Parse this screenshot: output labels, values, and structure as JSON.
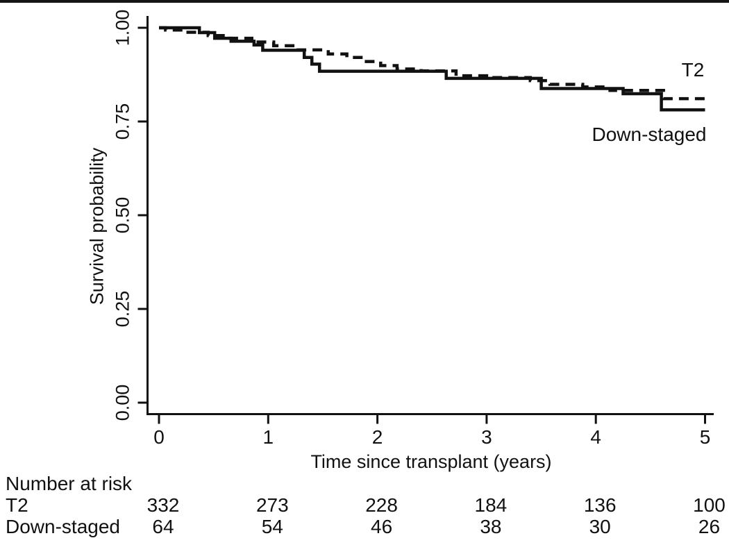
{
  "figure": {
    "y_axis": {
      "label": "Survival probability",
      "ticks": [
        "0.00",
        "0.25",
        "0.50",
        "0.75",
        "1.00"
      ]
    },
    "x_axis": {
      "label": "Time since transplant (years)",
      "ticks": [
        "0",
        "1",
        "2",
        "3",
        "4",
        "5"
      ]
    },
    "curve_labels": [
      {
        "text": "T2"
      },
      {
        "text": "Down-staged"
      }
    ],
    "risk_table": {
      "heading": "Number at risk",
      "rows": [
        {
          "label": "T2",
          "values": [
            "332",
            "273",
            "228",
            "184",
            "136",
            "100"
          ]
        },
        {
          "label": "Down-staged",
          "values": [
            "64",
            "54",
            "46",
            "38",
            "30",
            "26"
          ]
        }
      ]
    }
  },
  "colors": {
    "line": "#111111",
    "axis": "#222222",
    "text": "#111111",
    "background": "#ffffff"
  },
  "chart_data": {
    "type": "line",
    "variant": "kaplan_meier_step",
    "title": "",
    "xlabel": "Time since transplant (years)",
    "ylabel": "Survival probability",
    "xlim": [
      0,
      5
    ],
    "ylim": [
      0,
      1
    ],
    "xticks": [
      0,
      1,
      2,
      3,
      4,
      5
    ],
    "yticks": [
      0.0,
      0.25,
      0.5,
      0.75,
      1.0
    ],
    "grid": false,
    "legend_position": "curve-end-labels",
    "series": [
      {
        "name": "T2",
        "line_style": "dashed",
        "points": [
          [
            0.0,
            1.0
          ],
          [
            0.06,
            0.994
          ],
          [
            0.2,
            0.988
          ],
          [
            0.45,
            0.979
          ],
          [
            0.62,
            0.972
          ],
          [
            0.85,
            0.962
          ],
          [
            1.05,
            0.952
          ],
          [
            1.25,
            0.941
          ],
          [
            1.55,
            0.93
          ],
          [
            1.72,
            0.921
          ],
          [
            1.88,
            0.91
          ],
          [
            2.03,
            0.899
          ],
          [
            2.18,
            0.89
          ],
          [
            2.4,
            0.885
          ],
          [
            2.72,
            0.872
          ],
          [
            3.0,
            0.867
          ],
          [
            3.4,
            0.859
          ],
          [
            3.58,
            0.849
          ],
          [
            3.88,
            0.842
          ],
          [
            4.13,
            0.833
          ],
          [
            4.62,
            0.811
          ]
        ]
      },
      {
        "name": "Down-staged",
        "line_style": "solid",
        "points": [
          [
            0.0,
            1.0
          ],
          [
            0.37,
            0.987
          ],
          [
            0.51,
            0.972
          ],
          [
            0.66,
            0.964
          ],
          [
            0.87,
            0.954
          ],
          [
            0.95,
            0.94
          ],
          [
            1.33,
            0.921
          ],
          [
            1.4,
            0.903
          ],
          [
            1.47,
            0.884
          ],
          [
            2.63,
            0.865
          ],
          [
            3.5,
            0.838
          ],
          [
            4.25,
            0.824
          ],
          [
            4.6,
            0.781
          ]
        ]
      }
    ],
    "number_at_risk": {
      "times": [
        0,
        1,
        2,
        3,
        4,
        5
      ],
      "T2": [
        332,
        273,
        228,
        184,
        136,
        100
      ],
      "Down-staged": [
        64,
        54,
        46,
        38,
        30,
        26
      ]
    }
  }
}
